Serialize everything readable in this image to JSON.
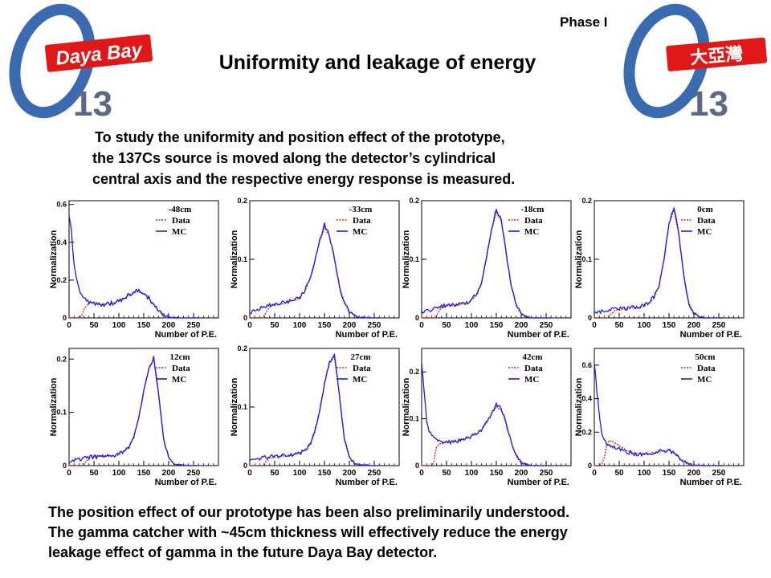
{
  "header": {
    "title": "Uniformity and leakage of energy",
    "phase": "Phase I",
    "logo_left": {
      "text": "Daya Bay",
      "number": "13"
    },
    "logo_right": {
      "text": "大亞灣",
      "number": "13"
    }
  },
  "intro": {
    "line1": "To study the uniformity and position effect of the prototype,",
    "line2": "the 137Cs source is moved along the detector’s cylindrical",
    "line3": "central axis and the respective energy response is measured."
  },
  "conclusion": {
    "line1": "The position effect of our prototype has been also preliminarily understood.",
    "line2": "The gamma catcher with ~45cm thickness will effectively reduce the energy",
    "line3": "leakage effect of gamma in the future Daya Bay detector."
  },
  "colors": {
    "data": "#e02020",
    "mc": "#1a1aee",
    "logo_red": "#e01818",
    "logo_blue": "#3a6ab0",
    "logo_grey": "#5a6a86"
  },
  "chart_data": [
    {
      "type": "line",
      "position_label": "-48cm",
      "xlabel": "Number of P.E.",
      "ylabel": "Normalization",
      "xlim": [
        0,
        300
      ],
      "ylim": [
        0,
        0.62
      ],
      "xticks": [
        "0",
        "50",
        "100",
        "150",
        "200",
        "250"
      ],
      "yticks": [
        {
          "v": 0,
          "t": "0"
        },
        {
          "v": 0.2,
          "t": "0.2"
        },
        {
          "v": 0.4,
          "t": "0.4"
        },
        {
          "v": 0.6,
          "t": "0.6"
        }
      ],
      "legend": [
        "Data",
        "MC"
      ],
      "legend_position": "top-right",
      "x": [
        0,
        5,
        10,
        15,
        20,
        25,
        30,
        40,
        50,
        60,
        70,
        80,
        90,
        100,
        110,
        120,
        130,
        140,
        150,
        160,
        170,
        180,
        190,
        200,
        210,
        220,
        250,
        300
      ],
      "series": [
        {
          "name": "Data",
          "values": [
            0,
            0,
            0,
            0,
            0,
            0.01,
            0.05,
            0.08,
            0.08,
            0.075,
            0.07,
            0.075,
            0.08,
            0.09,
            0.1,
            0.12,
            0.135,
            0.14,
            0.13,
            0.105,
            0.07,
            0.035,
            0.015,
            0.005,
            0.002,
            0,
            0,
            0
          ]
        },
        {
          "name": "MC",
          "values": [
            0.55,
            0.45,
            0.28,
            0.2,
            0.15,
            0.12,
            0.1,
            0.085,
            0.075,
            0.07,
            0.07,
            0.075,
            0.08,
            0.09,
            0.1,
            0.12,
            0.135,
            0.145,
            0.13,
            0.105,
            0.07,
            0.035,
            0.015,
            0.005,
            0.002,
            0,
            0,
            0
          ]
        }
      ]
    },
    {
      "type": "line",
      "position_label": "-33cm",
      "xlabel": "Number of P.E.",
      "ylabel": "Normalization",
      "xlim": [
        0,
        300
      ],
      "ylim": [
        0,
        0.2
      ],
      "xticks": [
        "0",
        "50",
        "100",
        "150",
        "200",
        "250"
      ],
      "yticks": [
        {
          "v": 0,
          "t": "0"
        },
        {
          "v": 0.1,
          "t": "0.1"
        },
        {
          "v": 0.2,
          "t": "0.2"
        }
      ],
      "legend": [
        "Data",
        "MC"
      ],
      "legend_position": "top-right",
      "x": [
        0,
        10,
        20,
        25,
        30,
        40,
        50,
        60,
        70,
        80,
        90,
        100,
        110,
        120,
        130,
        140,
        150,
        160,
        170,
        180,
        190,
        200,
        210,
        220,
        240,
        300
      ],
      "series": [
        {
          "name": "Data",
          "values": [
            0,
            0,
            0,
            0,
            0.005,
            0.02,
            0.022,
            0.023,
            0.025,
            0.027,
            0.03,
            0.035,
            0.045,
            0.065,
            0.095,
            0.13,
            0.155,
            0.14,
            0.1,
            0.055,
            0.025,
            0.01,
            0.004,
            0.001,
            0,
            0
          ]
        },
        {
          "name": "MC",
          "values": [
            0.01,
            0.012,
            0.015,
            0.018,
            0.02,
            0.022,
            0.024,
            0.025,
            0.026,
            0.028,
            0.03,
            0.035,
            0.045,
            0.065,
            0.095,
            0.13,
            0.16,
            0.14,
            0.1,
            0.055,
            0.025,
            0.01,
            0.004,
            0.001,
            0,
            0
          ]
        }
      ]
    },
    {
      "type": "line",
      "position_label": "-18cm",
      "xlabel": "Number of P.E.",
      "ylabel": "Normalization",
      "xlim": [
        0,
        300
      ],
      "ylim": [
        0,
        0.2
      ],
      "xticks": [
        "0",
        "50",
        "100",
        "150",
        "200",
        "250"
      ],
      "yticks": [
        {
          "v": 0,
          "t": "0"
        },
        {
          "v": 0.1,
          "t": "0.1"
        },
        {
          "v": 0.2,
          "t": "0.2"
        }
      ],
      "legend": [
        "Data",
        "MC"
      ],
      "legend_position": "top-right",
      "x": [
        0,
        10,
        20,
        25,
        30,
        40,
        50,
        60,
        70,
        80,
        90,
        100,
        110,
        120,
        130,
        140,
        150,
        160,
        170,
        180,
        190,
        200,
        210,
        220,
        240,
        300
      ],
      "series": [
        {
          "name": "Data",
          "values": [
            0,
            0,
            0,
            0,
            0.005,
            0.018,
            0.02,
            0.021,
            0.022,
            0.023,
            0.025,
            0.03,
            0.04,
            0.06,
            0.1,
            0.15,
            0.18,
            0.165,
            0.11,
            0.055,
            0.02,
            0.007,
            0.002,
            0,
            0,
            0
          ]
        },
        {
          "name": "MC",
          "values": [
            0.01,
            0.012,
            0.014,
            0.016,
            0.018,
            0.02,
            0.021,
            0.022,
            0.023,
            0.024,
            0.026,
            0.031,
            0.04,
            0.06,
            0.1,
            0.15,
            0.185,
            0.165,
            0.11,
            0.055,
            0.02,
            0.007,
            0.002,
            0,
            0,
            0
          ]
        }
      ]
    },
    {
      "type": "line",
      "position_label": "0cm",
      "xlabel": "Number of P.E.",
      "ylabel": "Normalization",
      "xlim": [
        0,
        300
      ],
      "ylim": [
        0,
        0.2
      ],
      "xticks": [
        "0",
        "50",
        "100",
        "150",
        "200",
        "250"
      ],
      "yticks": [
        {
          "v": 0,
          "t": "0"
        },
        {
          "v": 0.1,
          "t": "0.1"
        },
        {
          "v": 0.2,
          "t": "0.2"
        }
      ],
      "legend": [
        "Data",
        "MC"
      ],
      "legend_position": "top-right",
      "x": [
        0,
        10,
        20,
        25,
        30,
        40,
        50,
        60,
        70,
        80,
        90,
        100,
        110,
        120,
        130,
        140,
        150,
        160,
        170,
        180,
        190,
        200,
        210,
        220,
        240,
        300
      ],
      "series": [
        {
          "name": "Data",
          "values": [
            0,
            0,
            0,
            0,
            0.004,
            0.012,
            0.014,
            0.015,
            0.016,
            0.017,
            0.018,
            0.02,
            0.025,
            0.035,
            0.055,
            0.1,
            0.16,
            0.185,
            0.14,
            0.07,
            0.025,
            0.008,
            0.002,
            0,
            0,
            0
          ]
        },
        {
          "name": "MC",
          "values": [
            0.008,
            0.01,
            0.012,
            0.013,
            0.014,
            0.015,
            0.016,
            0.016,
            0.017,
            0.018,
            0.019,
            0.021,
            0.026,
            0.036,
            0.056,
            0.1,
            0.16,
            0.19,
            0.14,
            0.07,
            0.025,
            0.008,
            0.002,
            0,
            0,
            0
          ]
        }
      ]
    },
    {
      "type": "line",
      "position_label": "12cm",
      "xlabel": "Number of P.E.",
      "ylabel": "Normalization",
      "xlim": [
        0,
        300
      ],
      "ylim": [
        0,
        0.22
      ],
      "xticks": [
        "0",
        "50",
        "100",
        "150",
        "200",
        "250"
      ],
      "yticks": [
        {
          "v": 0,
          "t": "0"
        },
        {
          "v": 0.1,
          "t": "0.1"
        },
        {
          "v": 0.2,
          "t": "0.2"
        }
      ],
      "legend": [
        "Data",
        "MC"
      ],
      "legend_position": "top-right",
      "x": [
        0,
        10,
        20,
        25,
        30,
        40,
        50,
        60,
        70,
        80,
        90,
        100,
        110,
        120,
        130,
        140,
        150,
        160,
        170,
        180,
        190,
        200,
        210,
        220,
        240,
        300
      ],
      "series": [
        {
          "name": "Data",
          "values": [
            0,
            0,
            0,
            0,
            0.004,
            0.014,
            0.016,
            0.017,
            0.017,
            0.018,
            0.019,
            0.021,
            0.026,
            0.035,
            0.055,
            0.09,
            0.14,
            0.18,
            0.2,
            0.13,
            0.05,
            0.015,
            0.004,
            0.001,
            0,
            0
          ]
        },
        {
          "name": "MC",
          "values": [
            0.008,
            0.01,
            0.012,
            0.013,
            0.014,
            0.015,
            0.016,
            0.017,
            0.017,
            0.018,
            0.019,
            0.021,
            0.026,
            0.035,
            0.055,
            0.09,
            0.14,
            0.18,
            0.205,
            0.13,
            0.05,
            0.015,
            0.004,
            0.001,
            0,
            0
          ]
        }
      ]
    },
    {
      "type": "line",
      "position_label": "27cm",
      "xlabel": "Number of P.E.",
      "ylabel": "Normalization",
      "xlim": [
        0,
        300
      ],
      "ylim": [
        0,
        0.2
      ],
      "xticks": [
        "0",
        "50",
        "100",
        "150",
        "200",
        "250"
      ],
      "yticks": [
        {
          "v": 0,
          "t": "0"
        },
        {
          "v": 0.1,
          "t": "0.1"
        },
        {
          "v": 0.2,
          "t": "0.2"
        }
      ],
      "legend": [
        "Data",
        "MC"
      ],
      "legend_position": "top-right",
      "x": [
        0,
        10,
        20,
        25,
        30,
        40,
        50,
        60,
        70,
        80,
        90,
        100,
        110,
        120,
        130,
        140,
        150,
        160,
        170,
        180,
        190,
        200,
        210,
        220,
        240,
        300
      ],
      "series": [
        {
          "name": "Data",
          "values": [
            0,
            0,
            0,
            0,
            0.004,
            0.013,
            0.015,
            0.016,
            0.017,
            0.018,
            0.019,
            0.021,
            0.026,
            0.035,
            0.055,
            0.09,
            0.14,
            0.175,
            0.185,
            0.12,
            0.045,
            0.014,
            0.004,
            0.001,
            0,
            0
          ]
        },
        {
          "name": "MC",
          "values": [
            0.008,
            0.01,
            0.012,
            0.013,
            0.014,
            0.015,
            0.016,
            0.016,
            0.017,
            0.018,
            0.019,
            0.021,
            0.026,
            0.035,
            0.055,
            0.09,
            0.14,
            0.175,
            0.19,
            0.12,
            0.045,
            0.014,
            0.004,
            0.001,
            0,
            0
          ]
        }
      ]
    },
    {
      "type": "line",
      "position_label": "42cm",
      "xlabel": "Number of P.E.",
      "ylabel": "Normalization",
      "xlim": [
        0,
        300
      ],
      "ylim": [
        0,
        0.25
      ],
      "xticks": [
        "0",
        "50",
        "100",
        "150",
        "200",
        "250"
      ],
      "yticks": [
        {
          "v": 0,
          "t": "0"
        },
        {
          "v": 0.1,
          "t": "0.1"
        },
        {
          "v": 0.2,
          "t": "0.2"
        }
      ],
      "legend": [
        "Data",
        "MC"
      ],
      "legend_position": "top-right",
      "x": [
        0,
        5,
        10,
        15,
        20,
        25,
        30,
        40,
        50,
        60,
        70,
        80,
        90,
        100,
        110,
        120,
        130,
        140,
        150,
        160,
        170,
        180,
        190,
        200,
        210,
        220,
        240,
        300
      ],
      "series": [
        {
          "name": "Data",
          "values": [
            0,
            0,
            0,
            0,
            0,
            0.01,
            0.04,
            0.05,
            0.05,
            0.05,
            0.052,
            0.055,
            0.058,
            0.062,
            0.068,
            0.075,
            0.09,
            0.11,
            0.125,
            0.12,
            0.09,
            0.05,
            0.02,
            0.006,
            0.002,
            0,
            0,
            0
          ]
        },
        {
          "name": "MC",
          "values": [
            0.22,
            0.16,
            0.1,
            0.075,
            0.065,
            0.058,
            0.054,
            0.05,
            0.05,
            0.05,
            0.052,
            0.055,
            0.058,
            0.062,
            0.068,
            0.075,
            0.09,
            0.11,
            0.13,
            0.12,
            0.09,
            0.05,
            0.02,
            0.006,
            0.002,
            0,
            0,
            0
          ]
        }
      ]
    },
    {
      "type": "line",
      "position_label": "50cm",
      "xlabel": "Number of P.E.",
      "ylabel": "Normalization",
      "xlim": [
        0,
        300
      ],
      "ylim": [
        0,
        0.7
      ],
      "xticks": [
        "0",
        "50",
        "100",
        "150",
        "200",
        "250"
      ],
      "yticks": [
        {
          "v": 0,
          "t": "0"
        },
        {
          "v": 0.2,
          "t": "0.2"
        },
        {
          "v": 0.4,
          "t": "0.4"
        },
        {
          "v": 0.6,
          "t": "0.6"
        }
      ],
      "legend": [
        "Data",
        "MC"
      ],
      "legend_position": "top-right",
      "x": [
        0,
        5,
        10,
        15,
        20,
        25,
        30,
        40,
        50,
        60,
        70,
        80,
        90,
        100,
        110,
        120,
        130,
        140,
        150,
        160,
        170,
        180,
        190,
        200,
        210,
        220,
        250,
        300
      ],
      "series": [
        {
          "name": "Data",
          "values": [
            0,
            0,
            0,
            0.01,
            0.05,
            0.12,
            0.15,
            0.14,
            0.12,
            0.1,
            0.085,
            0.075,
            0.07,
            0.07,
            0.072,
            0.078,
            0.085,
            0.09,
            0.09,
            0.075,
            0.05,
            0.025,
            0.01,
            0.003,
            0.001,
            0,
            0,
            0
          ]
        },
        {
          "name": "MC",
          "values": [
            0.62,
            0.45,
            0.3,
            0.2,
            0.15,
            0.13,
            0.12,
            0.11,
            0.1,
            0.09,
            0.08,
            0.072,
            0.068,
            0.068,
            0.07,
            0.076,
            0.085,
            0.09,
            0.088,
            0.073,
            0.05,
            0.025,
            0.01,
            0.003,
            0.001,
            0,
            0,
            0
          ]
        }
      ]
    }
  ]
}
